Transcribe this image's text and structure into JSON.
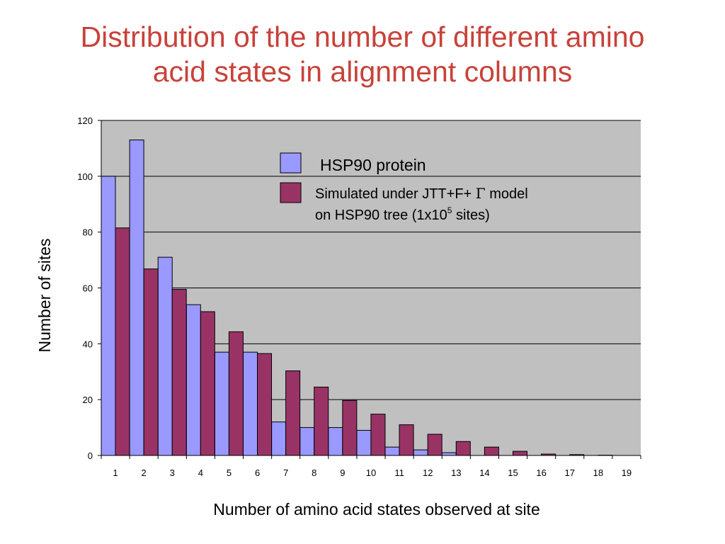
{
  "title": {
    "line1": "Distribution of the number of different amino",
    "line2": "acid states in alignment columns"
  },
  "colors": {
    "title": "#c8423a",
    "plot_background": "#c0c0c0",
    "gridline": "#000000",
    "series_hsp90": "#9999ff",
    "series_simulated": "#993366"
  },
  "chart_data": {
    "type": "bar",
    "categories": [
      "1",
      "2",
      "3",
      "4",
      "5",
      "6",
      "7",
      "8",
      "9",
      "10",
      "11",
      "12",
      "13",
      "14",
      "15",
      "16",
      "17",
      "18",
      "19"
    ],
    "series": [
      {
        "name": "HSP90 protein",
        "color": "#9999ff",
        "values": [
          100,
          113,
          71,
          54,
          37,
          37,
          12,
          10,
          10,
          9,
          3,
          2,
          1,
          0,
          0,
          0,
          0,
          0,
          0
        ]
      },
      {
        "name_parts": [
          "Simulated under JTT+F+ ",
          "Γ",
          " model",
          "on HSP90 tree (1x10",
          "5",
          " sites)"
        ],
        "color": "#993366",
        "values": [
          81.5,
          66.8,
          59.5,
          51.5,
          44.3,
          36.5,
          30.3,
          24.5,
          19.7,
          14.8,
          11,
          7.6,
          5,
          3,
          1.5,
          0.5,
          0.3,
          0.1,
          0
        ]
      }
    ],
    "xlabel": "Number of amino acid states observed at site",
    "ylabel": "Number of sites",
    "ylim": [
      0,
      120
    ],
    "yticks": [
      0,
      20,
      40,
      60,
      80,
      100,
      120
    ],
    "grid": true,
    "legend_position": "top-right"
  }
}
